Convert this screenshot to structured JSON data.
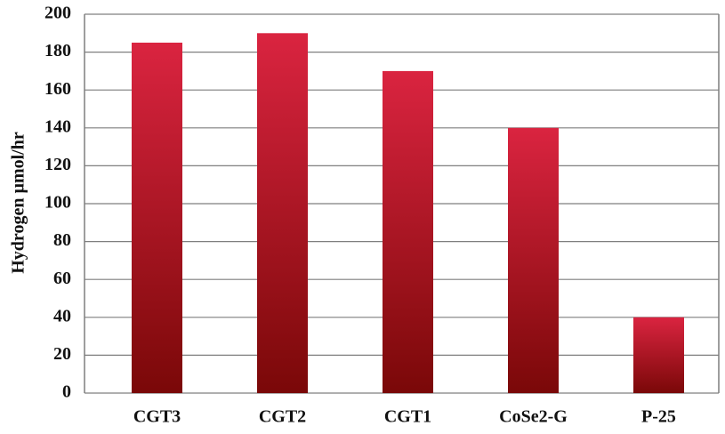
{
  "chart_data": {
    "type": "bar",
    "y_label": "Hydrogen µmol/hr",
    "categories": [
      "CGT3",
      "CGT2",
      "CGT1",
      "CoSe2-G",
      "P-25"
    ],
    "values": [
      185,
      190,
      170,
      140,
      40
    ],
    "color": "#da2440",
    "ylim": [
      0,
      200
    ],
    "yticks": [
      0,
      20,
      40,
      60,
      80,
      100,
      120,
      140,
      160,
      180,
      200
    ],
    "grid": true
  }
}
